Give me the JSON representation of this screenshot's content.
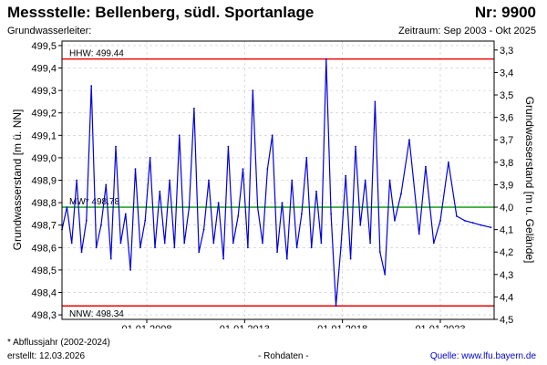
{
  "header": {
    "title": "Messstelle: Bellenberg, südl. Sportanlage",
    "station_no": "Nr: 9900",
    "aquifer_label": "Grundwasserleiter:",
    "period": "Zeitraum: Sep 2003 - Okt 2025"
  },
  "footer": {
    "note": "* Abflussjahr (2002-2024)",
    "created": "erstellt:  12.03.2026",
    "raw": "- Rohdaten -",
    "source": "Quelle: www.lfu.bayern.de"
  },
  "colors": {
    "series": "#0000dd",
    "extreme_lines": "#ee0000",
    "mean_line": "#009900",
    "grid": "#c8c8c8"
  },
  "chart_data": {
    "type": "line",
    "title": "",
    "xlabel": "",
    "ylabel": "Grundwasserstand [m ü. NN]",
    "ylabel_right": "Grundwasserstand [m u. Gelände]",
    "xlim": [
      "2003-09",
      "2025-10"
    ],
    "ylim": [
      498.28,
      499.52
    ],
    "ylim_right": [
      4.52,
      3.28
    ],
    "ground_level": 502.78,
    "grid": true,
    "x_ticks": [
      "01.01.2008",
      "01.01.2013",
      "01.01.2018",
      "01.01.2023"
    ],
    "y_ticks": [
      "498,3",
      "498,4",
      "498,5",
      "498,6",
      "498,7",
      "498,8",
      "498,9",
      "499,0",
      "499,1",
      "499,2",
      "499,3",
      "499,4",
      "499,5"
    ],
    "y_ticks_right": [
      "3,3",
      "3,4",
      "3,5",
      "3,6",
      "3,7",
      "3,8",
      "3,9",
      "4,0",
      "4,1",
      "4,2",
      "4,3",
      "4,4",
      "4,5"
    ],
    "reference_lines": [
      {
        "label": "HHW: 499.44",
        "value": 499.44,
        "color": "#ee0000"
      },
      {
        "label": "MW* 498.78",
        "value": 498.78,
        "color": "#009900"
      },
      {
        "label": "NNW: 498.34",
        "value": 498.34,
        "color": "#ee0000"
      }
    ],
    "series": [
      {
        "name": "",
        "color": "#0000dd",
        "x": [
          "2003-09",
          "2003-12",
          "2004-03",
          "2004-06",
          "2004-09",
          "2004-12",
          "2005-03",
          "2005-06",
          "2005-09",
          "2005-12",
          "2006-03",
          "2006-06",
          "2006-09",
          "2006-12",
          "2007-03",
          "2007-06",
          "2007-09",
          "2007-12",
          "2008-03",
          "2008-06",
          "2008-09",
          "2008-12",
          "2009-03",
          "2009-06",
          "2009-09",
          "2009-12",
          "2010-03",
          "2010-06",
          "2010-09",
          "2010-12",
          "2011-03",
          "2011-06",
          "2011-09",
          "2011-12",
          "2012-03",
          "2012-06",
          "2012-09",
          "2012-12",
          "2013-03",
          "2013-06",
          "2013-09",
          "2013-12",
          "2014-03",
          "2014-06",
          "2014-09",
          "2014-12",
          "2015-03",
          "2015-06",
          "2015-09",
          "2015-12",
          "2016-03",
          "2016-06",
          "2016-09",
          "2016-12",
          "2017-03",
          "2017-06",
          "2017-09",
          "2017-12",
          "2018-03",
          "2018-06",
          "2018-09",
          "2018-12",
          "2019-03",
          "2019-06",
          "2019-09",
          "2019-12",
          "2020-03",
          "2020-06",
          "2020-09",
          "2021-01",
          "2021-06",
          "2021-12",
          "2022-04",
          "2022-09",
          "2023-01",
          "2023-06",
          "2023-11",
          "2024-04",
          "2024-09",
          "2025-02",
          "2025-08"
        ],
        "y": [
          498.68,
          498.78,
          498.62,
          498.9,
          498.58,
          498.72,
          499.32,
          498.6,
          498.7,
          498.88,
          498.55,
          499.05,
          498.62,
          498.75,
          498.5,
          498.95,
          498.6,
          498.72,
          499.0,
          498.6,
          498.85,
          498.62,
          498.9,
          498.6,
          499.1,
          498.62,
          498.78,
          499.22,
          498.58,
          498.68,
          498.9,
          498.62,
          498.8,
          498.55,
          499.05,
          498.62,
          498.74,
          498.95,
          498.6,
          499.3,
          498.78,
          498.62,
          498.95,
          499.1,
          498.58,
          498.8,
          498.55,
          498.9,
          498.6,
          498.75,
          499.0,
          498.6,
          498.85,
          498.62,
          499.44,
          498.75,
          498.34,
          498.6,
          498.92,
          498.55,
          499.05,
          498.7,
          498.9,
          498.62,
          499.25,
          498.58,
          498.48,
          498.9,
          498.72,
          498.84,
          499.08,
          498.66,
          498.96,
          498.62,
          498.72,
          498.98,
          498.74,
          498.72,
          498.71,
          498.7,
          498.69
        ]
      }
    ]
  }
}
